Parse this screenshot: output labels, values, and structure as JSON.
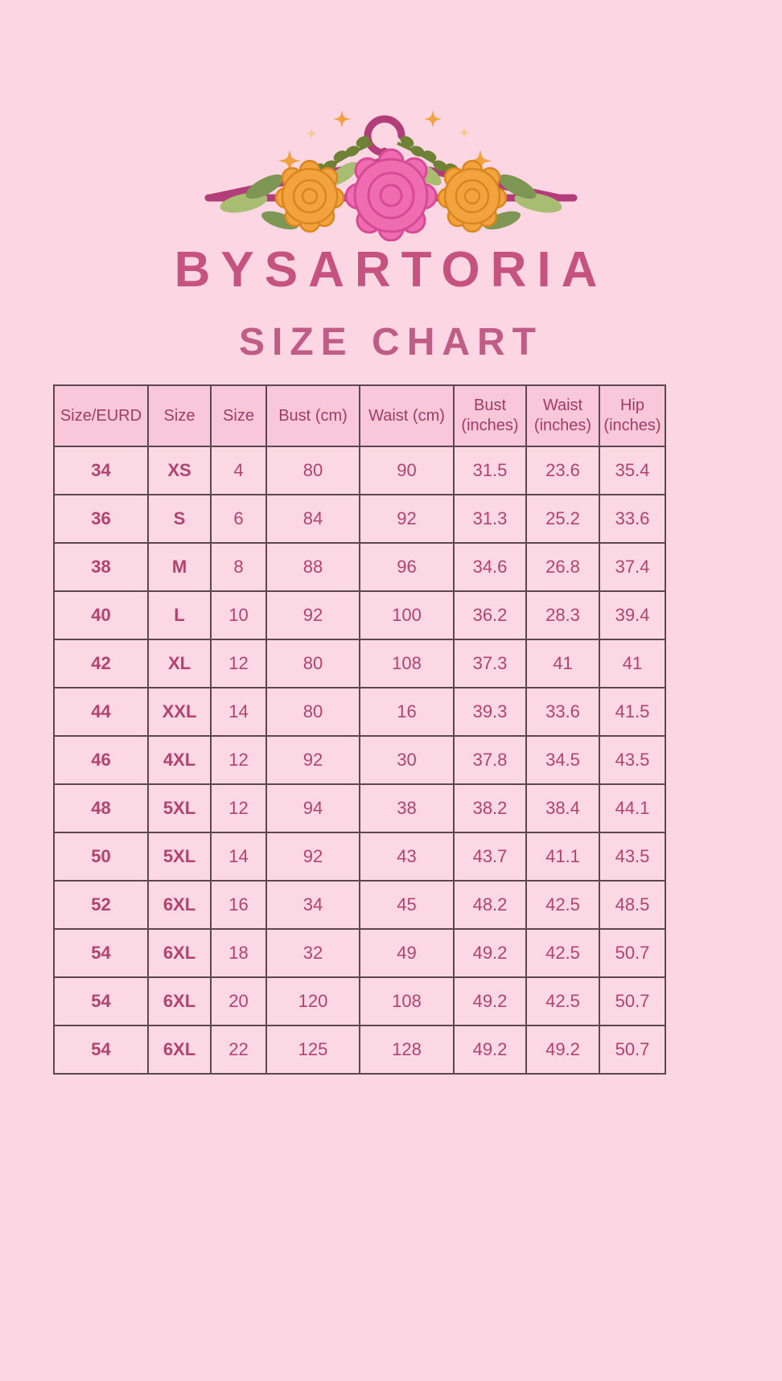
{
  "page": {
    "background_color": "#fdd6e3"
  },
  "logo": {
    "icon": "floral-hanger-icon",
    "colors": {
      "hanger": "#b23d78",
      "rose_pink": "#f06cb0",
      "rose_pink_outline": "#d64a96",
      "rose_orange": "#f2a33e",
      "rose_orange_outline": "#d9861f",
      "leaf_light": "#a9bd72",
      "leaf_dark": "#7d9653",
      "laurel": "#6f8135",
      "sparkle_amber": "#efa23f",
      "sparkle_light": "#f7c98d"
    }
  },
  "brand": {
    "name": "BYSARTORIA",
    "color": "#c6527f"
  },
  "subtitle": {
    "text": "SIZE CHART",
    "color": "#c05d86"
  },
  "size_table": {
    "headers": [
      "Size/EURD",
      "Size",
      "Size",
      "Bust (cm)",
      "Waist (cm)",
      "Bust (inches)",
      "Waist (inches)",
      "Hip (inches)"
    ],
    "rows": [
      [
        "34",
        "XS",
        "4",
        "80",
        "90",
        "31.5",
        "23.6",
        "35.4"
      ],
      [
        "36",
        "S",
        "6",
        "84",
        "92",
        "31.3",
        "25.2",
        "33.6"
      ],
      [
        "38",
        "M",
        "8",
        "88",
        "96",
        "34.6",
        "26.8",
        "37.4"
      ],
      [
        "40",
        "L",
        "10",
        "92",
        "100",
        "36.2",
        "28.3",
        "39.4"
      ],
      [
        "42",
        "XL",
        "12",
        "80",
        "108",
        "37.3",
        "41",
        "41"
      ],
      [
        "44",
        "XXL",
        "14",
        "80",
        "16",
        "39.3",
        "33.6",
        "41.5"
      ],
      [
        "46",
        "4XL",
        "12",
        "92",
        "30",
        "37.8",
        "34.5",
        "43.5"
      ],
      [
        "48",
        "5XL",
        "12",
        "94",
        "38",
        "38.2",
        "38.4",
        "44.1"
      ],
      [
        "50",
        "5XL",
        "14",
        "92",
        "43",
        "43.7",
        "41.1",
        "43.5"
      ],
      [
        "52",
        "6XL",
        "16",
        "34",
        "45",
        "48.2",
        "42.5",
        "48.5"
      ],
      [
        "54",
        "6XL",
        "18",
        "32",
        "49",
        "49.2",
        "42.5",
        "50.7"
      ],
      [
        "54",
        "6XL",
        "20",
        "120",
        "108",
        "49.2",
        "42.5",
        "50.7"
      ],
      [
        "54",
        "6XL",
        "22",
        "125",
        "128",
        "49.2",
        "49.2",
        "50.7"
      ]
    ],
    "colors": {
      "header_bg": "#f8c7d9",
      "row_bg": "#fbd8e4",
      "border": "#5d474f",
      "header_text": "#a23c66",
      "cell_text": "#b2436f"
    }
  }
}
